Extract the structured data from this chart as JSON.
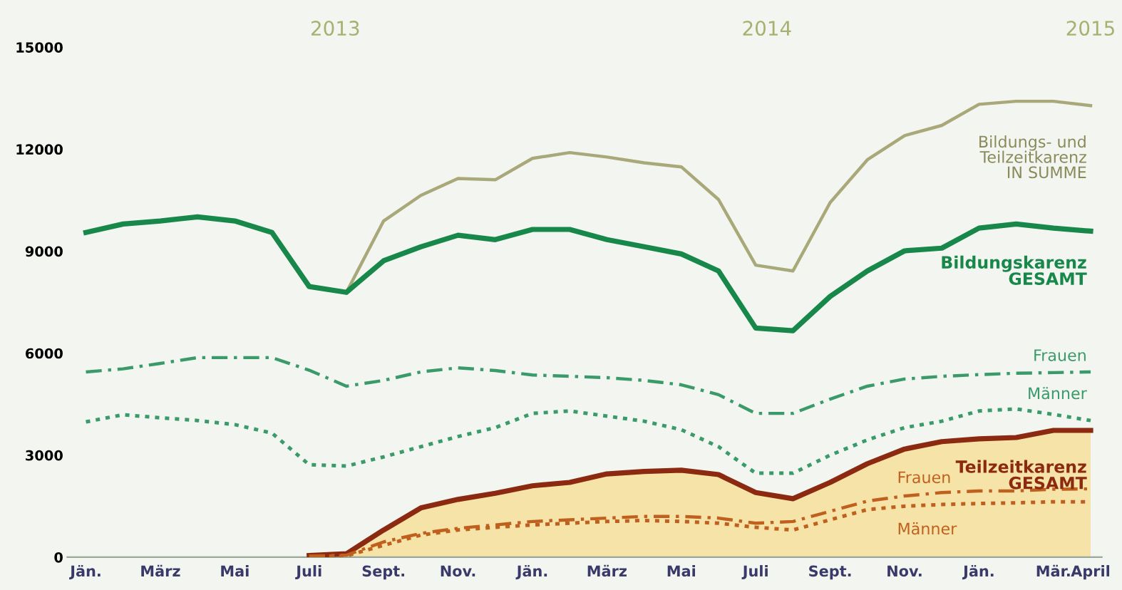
{
  "chart_data": {
    "type": "line",
    "categories": [
      "Jän.",
      null,
      "März",
      null,
      "Mai",
      null,
      "Juli",
      null,
      "Sept.",
      null,
      "Nov.",
      null,
      "Jän.",
      null,
      "März",
      null,
      "Mai",
      null,
      "Juli",
      null,
      "Sept.",
      null,
      "Nov.",
      null,
      "Jän.",
      null,
      "Mär.",
      "April"
    ],
    "annotations": [
      "2013",
      "2014",
      "2015"
    ],
    "ylim": [
      0,
      15000
    ],
    "yticks": [
      0,
      3000,
      6000,
      9000,
      12000,
      15000
    ],
    "grid": false,
    "legend": false,
    "series": [
      {
        "name": "Bildungs- und Teilzeitkarenz IN SUMME",
        "color": "#a8a878",
        "line_style": "solid",
        "values": [
          null,
          null,
          null,
          null,
          null,
          null,
          7960,
          7790,
          9890,
          10640,
          11140,
          11100,
          11730,
          11900,
          11770,
          11600,
          11480,
          10520,
          8590,
          8420,
          10430,
          11690,
          12400,
          12700,
          13320,
          13410,
          13410,
          13280
        ]
      },
      {
        "name": "Bildungskarenz GESAMT",
        "color": "#17874a",
        "line_style": "solid",
        "values": [
          9550,
          9800,
          9890,
          10010,
          9890,
          9550,
          7960,
          7790,
          8720,
          9130,
          9470,
          9340,
          9640,
          9640,
          9340,
          9130,
          8920,
          8420,
          6740,
          6660,
          7670,
          8420,
          9010,
          9090,
          9680,
          9800,
          9680,
          9590
        ]
      },
      {
        "name": "Frauen",
        "color": "#3a9a6a",
        "line_style": "dashed",
        "values": [
          5450,
          5540,
          5700,
          5870,
          5870,
          5870,
          5500,
          5030,
          5200,
          5450,
          5570,
          5490,
          5360,
          5320,
          5280,
          5200,
          5070,
          4780,
          4230,
          4230,
          4650,
          5030,
          5240,
          5320,
          5370,
          5410,
          5430,
          5450
        ]
      },
      {
        "name": "Männer",
        "color": "#3a9a6a",
        "line_style": "dotted",
        "values": [
          3980,
          4190,
          4100,
          4020,
          3900,
          3650,
          2720,
          2680,
          2950,
          3250,
          3550,
          3810,
          4230,
          4300,
          4150,
          4000,
          3750,
          3250,
          2470,
          2470,
          3000,
          3450,
          3810,
          4000,
          4300,
          4360,
          4200,
          4020
        ]
      },
      {
        "name": "Teilzeitkarenz GESAMT",
        "type": "area",
        "color": "#8b2a10",
        "line_style": "solid",
        "values": [
          null,
          null,
          null,
          null,
          null,
          null,
          50,
          100,
          800,
          1450,
          1700,
          1880,
          2100,
          2200,
          2450,
          2520,
          2560,
          2430,
          1900,
          1720,
          2200,
          2750,
          3180,
          3400,
          3480,
          3520,
          3730,
          3730
        ]
      },
      {
        "name": "Frauen",
        "color": "#c0601e",
        "line_style": "dashed",
        "values": [
          null,
          null,
          null,
          null,
          null,
          null,
          30,
          60,
          450,
          700,
          850,
          950,
          1050,
          1100,
          1150,
          1200,
          1200,
          1150,
          1000,
          1050,
          1350,
          1650,
          1800,
          1900,
          1950,
          1950,
          2000,
          2010
        ]
      },
      {
        "name": "Männer",
        "color": "#c0601e",
        "line_style": "dotted",
        "values": [
          null,
          null,
          null,
          null,
          null,
          null,
          20,
          40,
          350,
          650,
          800,
          880,
          950,
          1000,
          1050,
          1080,
          1050,
          1000,
          880,
          800,
          1100,
          1400,
          1500,
          1550,
          1580,
          1600,
          1630,
          1630
        ]
      }
    ]
  }
}
